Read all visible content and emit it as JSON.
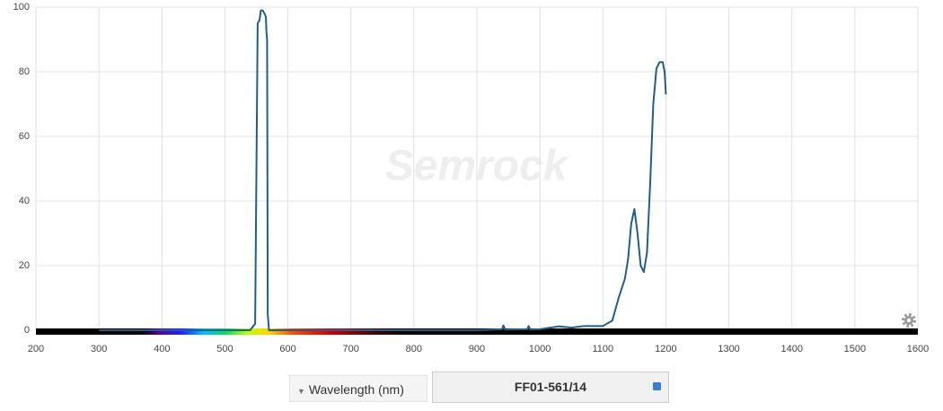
{
  "chart_data": {
    "type": "line",
    "watermark": "Semrock",
    "x_label": "Wavelength (nm)",
    "x": [
      300,
      540,
      548,
      552,
      555,
      557,
      560,
      563,
      565,
      566,
      567,
      568,
      570,
      600,
      900,
      940,
      942,
      945,
      980,
      982,
      985,
      1000,
      1030,
      1050,
      1070,
      1100,
      1115,
      1125,
      1135,
      1140,
      1145,
      1150,
      1155,
      1160,
      1165,
      1170,
      1175,
      1180,
      1185,
      1190,
      1195,
      1198,
      1200
    ],
    "series": [
      {
        "name": "FF01-561/14",
        "color": "#215e8a",
        "values": [
          0,
          0,
          2,
          95,
          96,
          99,
          99,
          98,
          97,
          92,
          90,
          5,
          0,
          0,
          0,
          0.3,
          1.5,
          0.2,
          0.3,
          1.3,
          0.2,
          0.3,
          1.2,
          0.8,
          1.3,
          1.3,
          3,
          10,
          16,
          22,
          33,
          37.5,
          30,
          20,
          18,
          24,
          45,
          70,
          81,
          83,
          83,
          80,
          73
        ]
      }
    ],
    "xlim": [
      200,
      1600
    ],
    "xticks": [
      200,
      300,
      400,
      500,
      600,
      700,
      800,
      900,
      1000,
      1100,
      1200,
      1300,
      1400,
      1500,
      1600
    ],
    "ylim": [
      0,
      100
    ],
    "yticks": [
      0,
      20,
      40,
      60,
      80,
      100
    ],
    "grid": true
  }
}
